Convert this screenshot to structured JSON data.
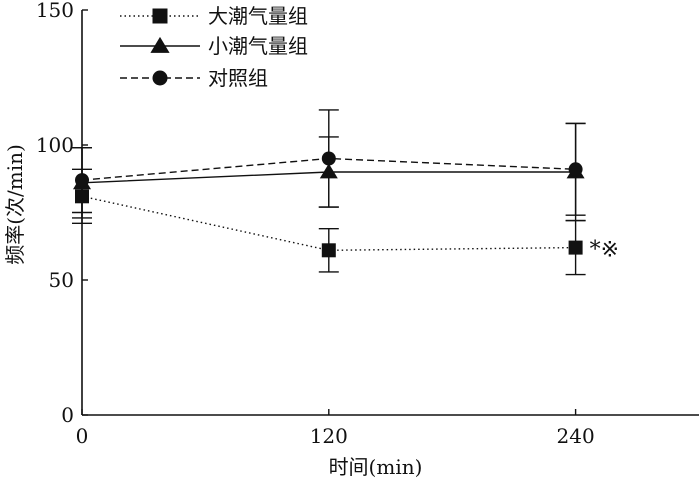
{
  "chart_data": {
    "type": "line",
    "xlabel": "时间(min)",
    "ylabel": "频率(次/min)",
    "x": [
      0,
      120,
      240
    ],
    "xlim": [
      0,
      300
    ],
    "ylim": [
      0,
      150
    ],
    "xticks": [
      0,
      120,
      240
    ],
    "yticks": [
      0,
      50,
      100,
      150
    ],
    "grid": false,
    "legend_position": "top-left",
    "series": [
      {
        "name": "大潮气量组",
        "marker": "square",
        "line_style": "dotted",
        "values": [
          81,
          61,
          62
        ],
        "error": [
          10,
          8,
          10
        ]
      },
      {
        "name": "小潮气量组",
        "marker": "triangle",
        "line_style": "solid",
        "values": [
          86,
          90,
          90
        ],
        "error": [
          13,
          13,
          18
        ]
      },
      {
        "name": "对照组",
        "marker": "circle",
        "line_style": "dashed",
        "values": [
          87,
          95,
          91
        ],
        "error": [
          12,
          18,
          17
        ]
      }
    ],
    "annotations": [
      {
        "text": "*※",
        "series": 0,
        "x": 240
      }
    ]
  }
}
